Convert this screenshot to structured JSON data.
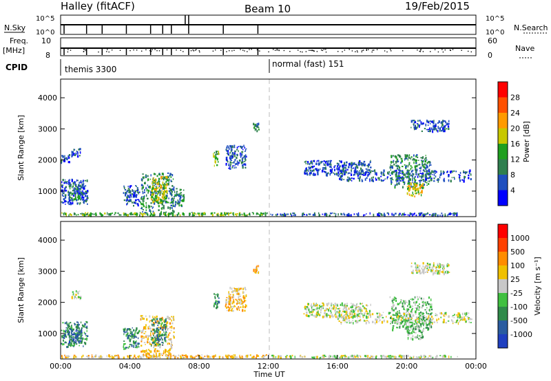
{
  "header": {
    "title": "Halley (fitACF)",
    "beam": "Beam 10",
    "date": "19/Feb/2015"
  },
  "status_panels": {
    "nsky_label": "N.Sky",
    "nsearch_label": "N.Search",
    "freq_label": "Freq.",
    "freq_unit": "[MHz]",
    "nave_label": "Nave",
    "cpid_label": "CPID",
    "noise_ticks": [
      "10^5",
      "10^0"
    ],
    "freq_ticks": [
      "10",
      "8"
    ],
    "nave_ticks": [
      "60",
      "0"
    ],
    "cpid_segments": [
      {
        "label": "themis 3300",
        "start_hour": 0
      },
      {
        "label": "normal (fast) 151",
        "start_hour": 12
      }
    ]
  },
  "chart_data": [
    {
      "type": "heatmap",
      "title": "",
      "xlabel": "Time UT",
      "ylabel": "Slant Range [km]",
      "xlim": [
        0,
        24
      ],
      "ylim": [
        180,
        4600
      ],
      "yticks": [
        1000,
        2000,
        3000,
        4000
      ],
      "colorbar": {
        "label": "Power [dB]",
        "ticks": [
          "4",
          "8",
          "12",
          "16",
          "20",
          "24",
          "28"
        ],
        "colors": [
          "#0000ff",
          "#1f4fbf",
          "#2f7f4f",
          "#1f9f1f",
          "#c8c800",
          "#ff9a00",
          "#ff5000",
          "#ff0000"
        ]
      },
      "patches": [
        {
          "t0": 0.0,
          "t1": 1.6,
          "r0": 550,
          "r1": 1400,
          "level": 1
        },
        {
          "t0": 0.4,
          "t1": 1.3,
          "r0": 700,
          "r1": 1200,
          "level": 2
        },
        {
          "t0": 0.6,
          "t1": 1.2,
          "r0": 2100,
          "r1": 2400,
          "level": 1
        },
        {
          "t0": 0.0,
          "t1": 0.6,
          "r0": 1900,
          "r1": 2200,
          "level": 1
        },
        {
          "t0": 3.6,
          "t1": 4.6,
          "r0": 500,
          "r1": 1200,
          "level": 1
        },
        {
          "t0": 4.6,
          "t1": 6.6,
          "r0": 200,
          "r1": 1600,
          "level": 2
        },
        {
          "t0": 5.2,
          "t1": 6.2,
          "r0": 600,
          "r1": 1500,
          "level": 4
        },
        {
          "t0": 6.3,
          "t1": 7.2,
          "r0": 500,
          "r1": 1100,
          "level": 2
        },
        {
          "t0": 8.8,
          "t1": 9.2,
          "r0": 1800,
          "r1": 2300,
          "level": 3
        },
        {
          "t0": 9.5,
          "t1": 10.8,
          "r0": 1700,
          "r1": 2500,
          "level": 1
        },
        {
          "t0": 11.1,
          "t1": 11.5,
          "r0": 2900,
          "r1": 3200,
          "level": 2
        },
        {
          "t0": 0.0,
          "t1": 12.0,
          "r0": 200,
          "r1": 330,
          "level": 3
        },
        {
          "t0": 12.0,
          "t1": 23.0,
          "r0": 200,
          "r1": 320,
          "level": 1
        },
        {
          "t0": 16.0,
          "t1": 23.8,
          "r0": 1300,
          "r1": 1700,
          "level": 1
        },
        {
          "t0": 19.0,
          "t1": 21.5,
          "r0": 1100,
          "r1": 2200,
          "level": 2
        },
        {
          "t0": 20.0,
          "t1": 21.0,
          "r0": 800,
          "r1": 1300,
          "level": 4
        },
        {
          "t0": 20.2,
          "t1": 22.5,
          "r0": 2900,
          "r1": 3300,
          "level": 1
        },
        {
          "t0": 14.0,
          "t1": 18.0,
          "r0": 1500,
          "r1": 2000,
          "level": 1
        }
      ]
    },
    {
      "type": "heatmap",
      "title": "",
      "xlabel": "Time UT",
      "ylabel": "Slant Range [km]",
      "xlim": [
        0,
        24
      ],
      "ylim": [
        180,
        4600
      ],
      "yticks": [
        1000,
        2000,
        3000,
        4000
      ],
      "xticks": [
        "00:00",
        "04:00",
        "08:00",
        "12:00",
        "16:00",
        "20:00",
        "00:00"
      ],
      "colorbar": {
        "label": "Velocity [m s⁻¹]",
        "ticks": [
          "1000",
          "500",
          "100",
          "25",
          "-25",
          "-100",
          "-500",
          "-1000"
        ],
        "colors": [
          "#2040c0",
          "#2a5ca0",
          "#2f8a4a",
          "#40c040",
          "#c8c8c8",
          "#f0c000",
          "#ff8c00",
          "#ff4000",
          "#ff0000"
        ]
      },
      "patches": [
        {
          "t0": 0.0,
          "t1": 1.6,
          "r0": 550,
          "r1": 1400,
          "level": 2
        },
        {
          "t0": 0.4,
          "t1": 1.3,
          "r0": 700,
          "r1": 1200,
          "level": 1
        },
        {
          "t0": 0.6,
          "t1": 1.2,
          "r0": 2100,
          "r1": 2400,
          "level": 4
        },
        {
          "t0": 3.6,
          "t1": 4.6,
          "r0": 500,
          "r1": 1200,
          "level": 2
        },
        {
          "t0": 4.6,
          "t1": 6.6,
          "r0": 200,
          "r1": 1600,
          "level": 5
        },
        {
          "t0": 5.2,
          "t1": 6.2,
          "r0": 600,
          "r1": 1500,
          "level": 2
        },
        {
          "t0": 8.8,
          "t1": 9.2,
          "r0": 1800,
          "r1": 2300,
          "level": 2
        },
        {
          "t0": 9.5,
          "t1": 10.8,
          "r0": 1700,
          "r1": 2500,
          "level": 5
        },
        {
          "t0": 11.1,
          "t1": 11.5,
          "r0": 2900,
          "r1": 3200,
          "level": 5
        },
        {
          "t0": 0.0,
          "t1": 12.0,
          "r0": 200,
          "r1": 330,
          "level": 5
        },
        {
          "t0": 12.0,
          "t1": 23.0,
          "r0": 200,
          "r1": 320,
          "level": 4
        },
        {
          "t0": 16.0,
          "t1": 23.8,
          "r0": 1300,
          "r1": 1700,
          "level": 4
        },
        {
          "t0": 19.0,
          "t1": 21.5,
          "r0": 1100,
          "r1": 2200,
          "level": 3
        },
        {
          "t0": 20.0,
          "t1": 21.0,
          "r0": 800,
          "r1": 1300,
          "level": 3
        },
        {
          "t0": 20.2,
          "t1": 22.5,
          "r0": 2900,
          "r1": 3300,
          "level": 4
        },
        {
          "t0": 14.0,
          "t1": 18.0,
          "r0": 1500,
          "r1": 2000,
          "level": 4
        }
      ]
    }
  ]
}
